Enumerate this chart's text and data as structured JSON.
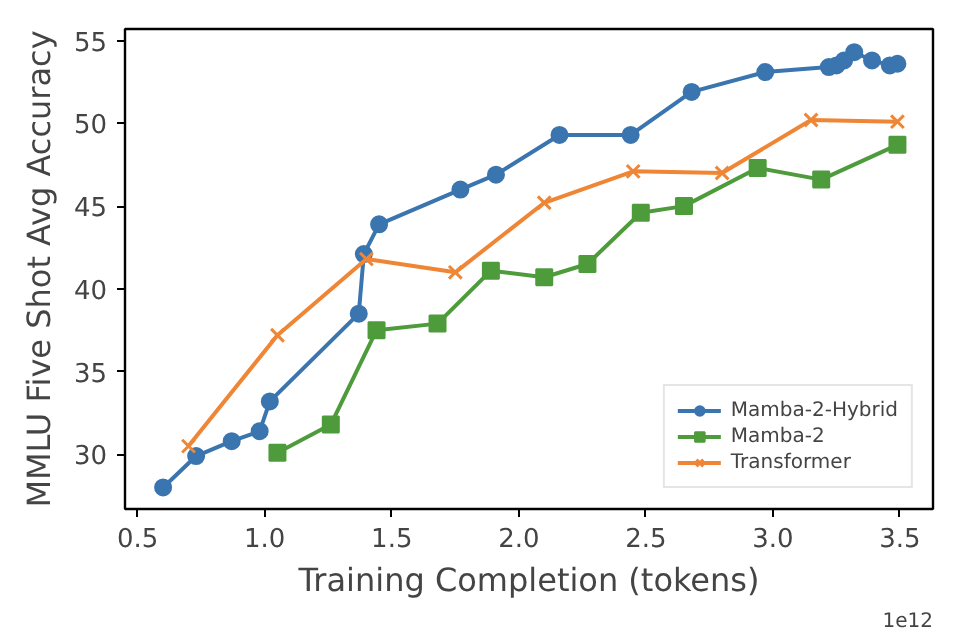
{
  "chart_data": {
    "type": "line",
    "xlabel": "Training Completion (tokens)",
    "ylabel": "MMLU Five Shot Avg Accuracy",
    "annotations": [
      "1e12"
    ],
    "xlim": [
      0.45,
      3.63
    ],
    "ylim": [
      26.7,
      55.7
    ],
    "xticks": [
      {
        "value": 0.5,
        "label": "0.5"
      },
      {
        "value": 1.0,
        "label": "1.0"
      },
      {
        "value": 1.5,
        "label": "1.5"
      },
      {
        "value": 2.0,
        "label": "2.0"
      },
      {
        "value": 2.5,
        "label": "2.5"
      },
      {
        "value": 3.0,
        "label": "3.0"
      },
      {
        "value": 3.5,
        "label": "3.5"
      }
    ],
    "yticks": [
      30,
      35,
      40,
      45,
      50,
      55
    ],
    "grid": false,
    "legend": "bottom right",
    "series": [
      {
        "name": "Mamba-2-Hybrid",
        "color": "#3a75af",
        "marker": "circle",
        "x": [
          0.6,
          0.73,
          0.87,
          0.98,
          1.02,
          1.37,
          1.39,
          1.45,
          1.77,
          1.91,
          2.16,
          2.44,
          2.68,
          2.97,
          3.22,
          3.25,
          3.28,
          3.32,
          3.39,
          3.46,
          3.49
        ],
        "values": [
          28.0,
          29.9,
          30.8,
          31.4,
          33.2,
          38.5,
          42.1,
          43.9,
          46.0,
          46.9,
          49.3,
          49.3,
          51.9,
          53.1,
          53.4,
          53.5,
          53.8,
          54.3,
          53.8,
          53.5,
          53.6
        ]
      },
      {
        "name": "Mamba-2",
        "color": "#4e9b3c",
        "marker": "square",
        "x": [
          1.05,
          1.26,
          1.44,
          1.68,
          1.89,
          2.1,
          2.27,
          2.48,
          2.65,
          2.94,
          3.19,
          3.49
        ],
        "values": [
          30.1,
          31.8,
          37.5,
          37.9,
          41.1,
          40.7,
          41.5,
          44.6,
          45.0,
          47.3,
          46.6,
          48.7
        ]
      },
      {
        "name": "Transformer",
        "color": "#ef8636",
        "marker": "cross",
        "x": [
          0.7,
          1.05,
          1.4,
          1.75,
          2.1,
          2.45,
          2.8,
          3.15,
          3.49
        ],
        "values": [
          30.5,
          37.2,
          41.8,
          41.0,
          45.2,
          47.1,
          47.0,
          50.2,
          50.1
        ]
      }
    ]
  }
}
